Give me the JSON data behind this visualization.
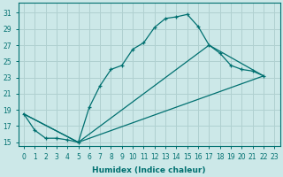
{
  "xlabel": "Humidex (Indice chaleur)",
  "background_color": "#cce8e8",
  "grid_color": "#b0d0d0",
  "line_color": "#007070",
  "xlim": [
    -0.5,
    23.5
  ],
  "ylim": [
    14.5,
    32.2
  ],
  "xticks": [
    0,
    1,
    2,
    3,
    4,
    5,
    6,
    7,
    8,
    9,
    10,
    11,
    12,
    13,
    14,
    15,
    16,
    17,
    18,
    19,
    20,
    21,
    22,
    23
  ],
  "yticks": [
    15,
    17,
    19,
    21,
    23,
    25,
    27,
    29,
    31
  ],
  "line1_x": [
    0,
    1,
    2,
    3,
    4,
    5,
    6,
    7,
    8,
    9,
    10,
    11,
    12,
    13,
    14,
    15,
    16,
    17,
    18,
    19,
    20,
    21,
    22
  ],
  "line1_y": [
    18.5,
    16.5,
    15.5,
    15.5,
    15.3,
    15.0,
    19.3,
    22.0,
    24.0,
    24.5,
    26.5,
    27.3,
    29.2,
    30.3,
    30.5,
    30.8,
    29.3,
    27.0,
    26.0,
    24.5,
    24.0,
    23.8,
    23.2
  ],
  "line2_x": [
    0,
    5,
    17,
    22
  ],
  "line2_y": [
    18.5,
    15.0,
    27.0,
    23.2
  ],
  "line3_x": [
    0,
    5,
    22
  ],
  "line3_y": [
    18.5,
    15.0,
    23.2
  ]
}
